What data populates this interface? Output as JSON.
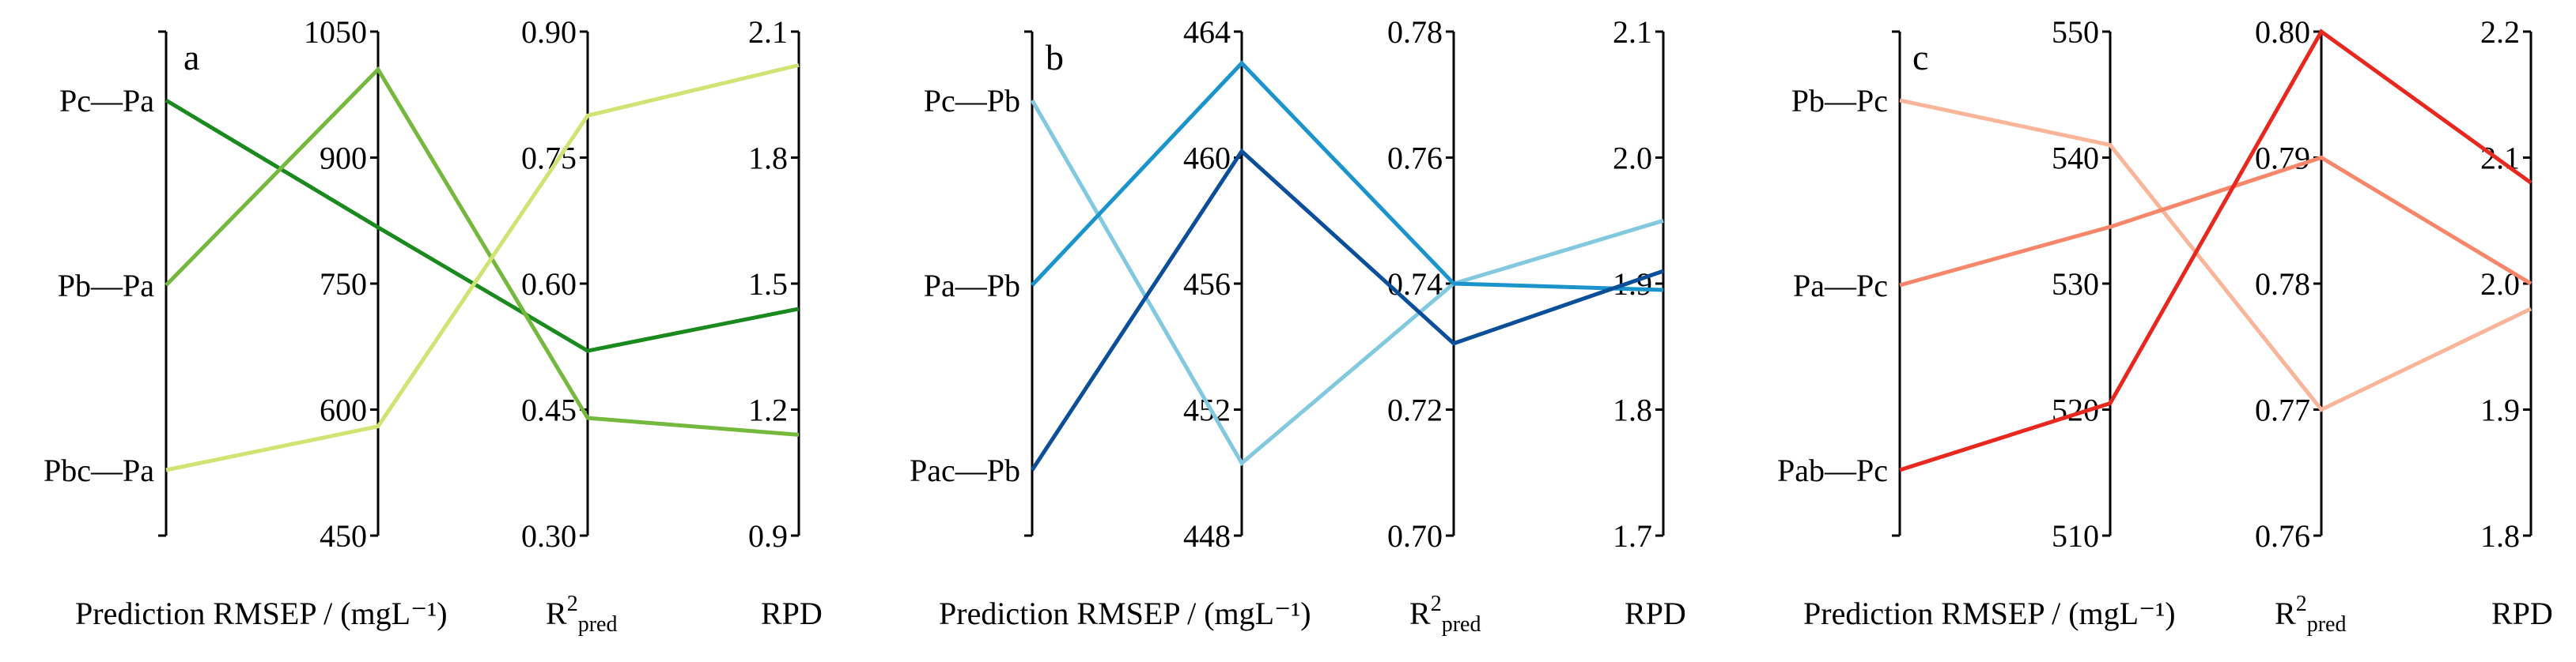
{
  "chart_data": [
    {
      "type": "line",
      "subtype": "parallel-coordinates",
      "panel": "a",
      "categories": [
        "Pc—Pa",
        "Pb—Pa",
        "Pbc—Pa"
      ],
      "axes": [
        {
          "label": "Prediction RMSEP / (mgL⁻¹)",
          "range": [
            450,
            1050
          ],
          "ticks": [
            "1050",
            "900",
            "750",
            "600",
            "450"
          ]
        },
        {
          "label": "R²pred",
          "range": [
            0.3,
            0.9
          ],
          "ticks": [
            "0.90",
            "0.75",
            "0.60",
            "0.45",
            "0.30"
          ]
        },
        {
          "label": "RPD",
          "range": [
            0.9,
            2.1
          ],
          "ticks": [
            "2.1",
            "1.8",
            "1.5",
            "1.2",
            "0.9"
          ]
        }
      ],
      "series": [
        {
          "name": "Pc—Pa",
          "color": "#1a8a1f",
          "values": [
            817,
            0.52,
            1.44
          ]
        },
        {
          "name": "Pb—Pa",
          "color": "#74b83d",
          "values": [
            1005,
            0.44,
            1.14
          ]
        },
        {
          "name": "Pbc—Pa",
          "color": "#cfe472",
          "values": [
            580,
            0.8,
            2.02
          ]
        }
      ]
    },
    {
      "type": "line",
      "subtype": "parallel-coordinates",
      "panel": "b",
      "categories": [
        "Pc—Pb",
        "Pa—Pb",
        "Pac—Pb"
      ],
      "axes": [
        {
          "label": "Prediction RMSEP / (mgL⁻¹)",
          "range": [
            448,
            464
          ],
          "ticks": [
            "464",
            "460",
            "456",
            "452",
            "448"
          ]
        },
        {
          "label": "R²pred",
          "range": [
            0.7,
            0.78
          ],
          "ticks": [
            "0.78",
            "0.76",
            "0.74",
            "0.72",
            "0.70"
          ]
        },
        {
          "label": "RPD",
          "range": [
            1.7,
            2.1
          ],
          "ticks": [
            "2.1",
            "2.0",
            "1.9",
            "1.8",
            "1.7"
          ]
        }
      ],
      "series": [
        {
          "name": "Pc—Pb",
          "color": "#82c9e0",
          "values": [
            450.3,
            0.74,
            1.95
          ]
        },
        {
          "name": "Pa—Pb",
          "color": "#1b93cb",
          "values": [
            463.0,
            0.74,
            1.895
          ]
        },
        {
          "name": "Pac—Pb",
          "color": "#0b4f9a",
          "values": [
            460.2,
            0.7305,
            1.91
          ]
        }
      ]
    },
    {
      "type": "line",
      "subtype": "parallel-coordinates",
      "panel": "c",
      "categories": [
        "Pb—Pc",
        "Pa—Pc",
        "Pab—Pc"
      ],
      "axes": [
        {
          "label": "Prediction RMSEP / (mgL⁻¹)",
          "range": [
            510,
            550
          ],
          "ticks": [
            "550",
            "540",
            "530",
            "520",
            "510"
          ]
        },
        {
          "label": "R²pred",
          "range": [
            0.76,
            0.8
          ],
          "ticks": [
            "0.80",
            "0.79",
            "0.78",
            "0.77",
            "0.76"
          ]
        },
        {
          "label": "RPD",
          "range": [
            1.8,
            2.2
          ],
          "ticks": [
            "2.2",
            "2.1",
            "2.0",
            "1.9",
            "1.8"
          ]
        }
      ],
      "series": [
        {
          "name": "Pb—Pc",
          "color": "#f9b59a",
          "values": [
            541.0,
            0.77,
            1.98
          ]
        },
        {
          "name": "Pa—Pc",
          "color": "#f7866a",
          "values": [
            534.5,
            0.79,
            2.0
          ]
        },
        {
          "name": "Pab—Pc",
          "color": "#e8281f",
          "values": [
            520.5,
            0.8,
            2.08
          ]
        }
      ]
    }
  ]
}
